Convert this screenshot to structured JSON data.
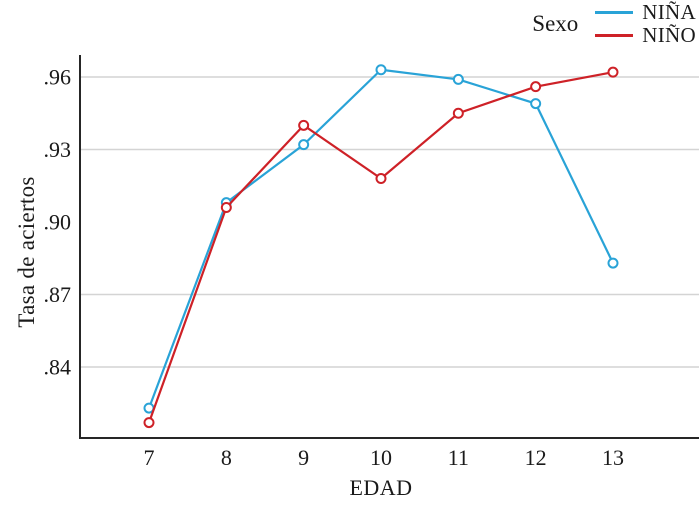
{
  "figure": {
    "background": "#ffffff"
  },
  "legend": {
    "title": "Sexo",
    "entries": [
      {
        "label": "NIÑA",
        "color": "#29A3D7"
      },
      {
        "label": "NIÑO",
        "color": "#CE2127"
      }
    ]
  },
  "chart_data": {
    "type": "line",
    "x": [
      7,
      8,
      9,
      10,
      11,
      12,
      13
    ],
    "xlabel": "EDAD",
    "ylabel": "Tasa de aciertos",
    "legend_title": "Sexo",
    "legend_position": "top-right",
    "grid": "horizontal-only",
    "marker": "open-circle",
    "ylim": [
      0.805,
      0.969
    ],
    "y_ticks": [
      {
        "label": ".96",
        "value": 0.96
      },
      {
        "label": ".93",
        "value": 0.93
      },
      {
        "label": ".90",
        "value": 0.9
      },
      {
        "label": ".87",
        "value": 0.87
      },
      {
        "label": ".84",
        "value": 0.84
      }
    ],
    "gridline_values": [
      0.96,
      0.93,
      0.87,
      0.84
    ],
    "series": [
      {
        "name": "NIÑA",
        "color": "#29A3D7",
        "values": [
          0.823,
          0.908,
          0.932,
          0.963,
          0.959,
          0.949,
          0.883
        ]
      },
      {
        "name": "NIÑO",
        "color": "#CE2127",
        "values": [
          0.817,
          0.906,
          0.94,
          0.918,
          0.945,
          0.956,
          0.962
        ]
      }
    ],
    "colors": {
      "axis": "#262626",
      "gridline": "#d4d4d4",
      "text": "#1a1a1a"
    }
  }
}
